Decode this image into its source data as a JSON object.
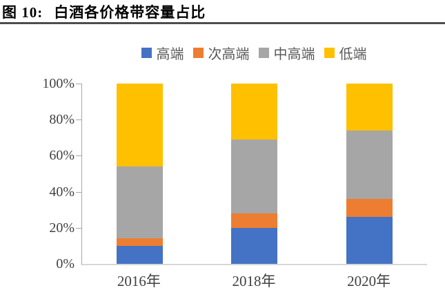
{
  "figure": {
    "label": "图 10:",
    "title": "白酒各价格带容量占比"
  },
  "theme": {
    "title_color": "#000000",
    "rule_color": "#4d4d4d",
    "legend_text_color": "#595959",
    "axis_line_color": "#a6a6a6",
    "baseline_color": "#d6d6d6",
    "tick_label_color": "#404040"
  },
  "chart_data": {
    "type": "bar",
    "stacked": true,
    "title": "白酒各价格带容量占比",
    "categories": [
      "2016年",
      "2018年",
      "2020年"
    ],
    "series": [
      {
        "name": "高端",
        "color": "#4472C4",
        "values": [
          10,
          20,
          26
        ]
      },
      {
        "name": "次高端",
        "color": "#ED7D31",
        "values": [
          4,
          8,
          10
        ]
      },
      {
        "name": "中高端",
        "color": "#A6A6A6",
        "values": [
          40,
          41,
          38
        ]
      },
      {
        "name": "低端",
        "color": "#FFC000",
        "values": [
          46,
          31,
          26
        ]
      }
    ],
    "xlabel": "",
    "ylabel": "",
    "ylim": [
      0,
      100
    ],
    "yticks": [
      "0%",
      "20%",
      "40%",
      "60%",
      "80%",
      "100%"
    ],
    "unit": "percent",
    "legend_position": "top",
    "grid": false
  }
}
